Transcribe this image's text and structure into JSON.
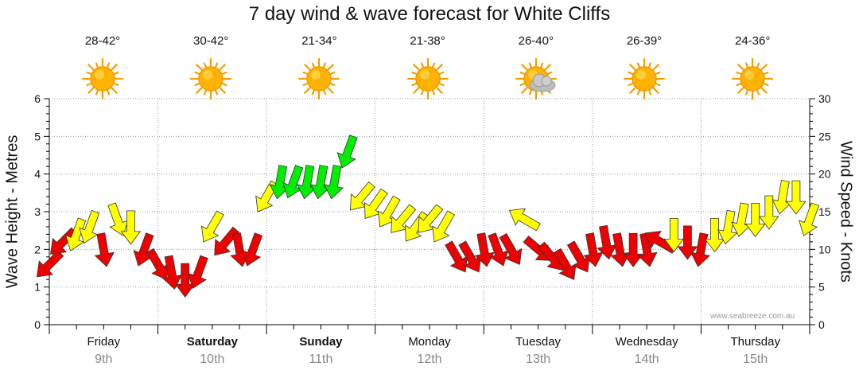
{
  "chart_data": {
    "type": "line",
    "title": "7 day wind & wave forecast for White Cliffs",
    "ylabel_left": "Wave Height - Metres",
    "ylabel_right": "Wind Speed - Knots",
    "ylim_left": [
      0,
      6
    ],
    "ylim_right": [
      0,
      30
    ],
    "yticks_left": [
      "0",
      "1",
      "2",
      "3",
      "4",
      "5",
      "6"
    ],
    "yticks_right": [
      "0",
      "5",
      "10",
      "15",
      "20",
      "25",
      "30"
    ],
    "grid": true,
    "days": [
      {
        "name": "Friday",
        "date": "9th",
        "bold": false,
        "temp": "28-42°",
        "icon": "sun-icon"
      },
      {
        "name": "Saturday",
        "date": "10th",
        "bold": true,
        "temp": "30-42°",
        "icon": "sun-icon"
      },
      {
        "name": "Sunday",
        "date": "11th",
        "bold": true,
        "temp": "21-34°",
        "icon": "sun-icon"
      },
      {
        "name": "Monday",
        "date": "12th",
        "bold": false,
        "temp": "21-38°",
        "icon": "sun-icon"
      },
      {
        "name": "Tuesday",
        "date": "13th",
        "bold": false,
        "temp": "26-40°",
        "icon": "sun-cloud-icon"
      },
      {
        "name": "Wednesday",
        "date": "14th",
        "bold": false,
        "temp": "26-39°",
        "icon": "sun-icon"
      },
      {
        "name": "Thursday",
        "date": "15th",
        "bold": false,
        "temp": "24-36°",
        "icon": "sun-icon"
      }
    ],
    "wind_speed_series": {
      "name": "Wind Speed - Knots",
      "x_hours": [
        0,
        3,
        6,
        9,
        12,
        15,
        18,
        21,
        24,
        27,
        30,
        33,
        36,
        39,
        42,
        45,
        48,
        51,
        54,
        57,
        60,
        63,
        66,
        69,
        72,
        75,
        78,
        81,
        84,
        87,
        90,
        93,
        96,
        99,
        102,
        105,
        108,
        111,
        114,
        117,
        120,
        123,
        126,
        129,
        132,
        135,
        138,
        141,
        144,
        147,
        150,
        153,
        156,
        159,
        162,
        165,
        168
      ],
      "knots": [
        8,
        11,
        12,
        13,
        10,
        14,
        13,
        10,
        8,
        7,
        6,
        7,
        13,
        11,
        10,
        10,
        17,
        19,
        19,
        19,
        19,
        19,
        23,
        17,
        16,
        15,
        14,
        13,
        14,
        13,
        9,
        9,
        10,
        10,
        10,
        14,
        10,
        9,
        8,
        9,
        10,
        11,
        10,
        10,
        10,
        11,
        12,
        11,
        10,
        12,
        13,
        14,
        14,
        15,
        17,
        17,
        14
      ],
      "direction_deg": [
        225,
        225,
        200,
        200,
        170,
        160,
        180,
        200,
        150,
        170,
        180,
        200,
        210,
        220,
        170,
        200,
        210,
        190,
        200,
        190,
        190,
        190,
        200,
        220,
        215,
        210,
        220,
        215,
        220,
        210,
        150,
        150,
        170,
        160,
        150,
        300,
        130,
        140,
        150,
        150,
        170,
        170,
        170,
        180,
        170,
        300,
        180,
        180,
        190,
        180,
        190,
        190,
        180,
        180,
        190,
        180,
        200
      ],
      "colors": {
        "red": "#ee0000",
        "yellow": "#ffff00",
        "green": "#00ee00"
      }
    },
    "wave_series": {
      "name": "Wave Height - Metres",
      "values": []
    }
  },
  "watermark": "www.seabreeze.com.au"
}
